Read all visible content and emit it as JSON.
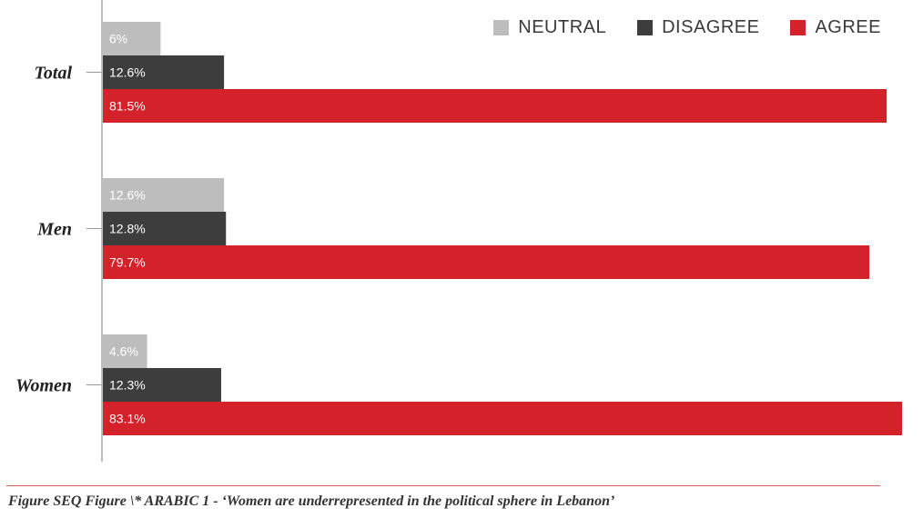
{
  "chart_data": {
    "type": "bar",
    "orientation": "horizontal",
    "categories": [
      "Total",
      "Men",
      "Women"
    ],
    "series": [
      {
        "name": "NEUTRAL",
        "color": "#bdbdbd",
        "values": [
          6,
          12.6,
          4.6
        ],
        "labels": [
          "6%",
          "12.6%",
          "4.6%"
        ]
      },
      {
        "name": "DISAGREE",
        "color": "#3d3d3d",
        "values": [
          12.6,
          12.8,
          12.3
        ],
        "labels": [
          "12.6%",
          "12.8%",
          "12.3%"
        ]
      },
      {
        "name": "AGREE",
        "color": "#d4222b",
        "values": [
          81.5,
          79.7,
          83.1
        ],
        "labels": [
          "81.5%",
          "79.7%",
          "83.1%"
        ]
      }
    ],
    "legend_order": [
      "NEUTRAL",
      "DISAGREE",
      "AGREE"
    ],
    "legend_position": "top-right",
    "xlim": [
      0,
      83.1
    ],
    "grid": false
  },
  "caption": "Figure  SEQ Figure \\* ARABIC 1 - ‘Women are underrepresented in the political sphere in Lebanon’"
}
